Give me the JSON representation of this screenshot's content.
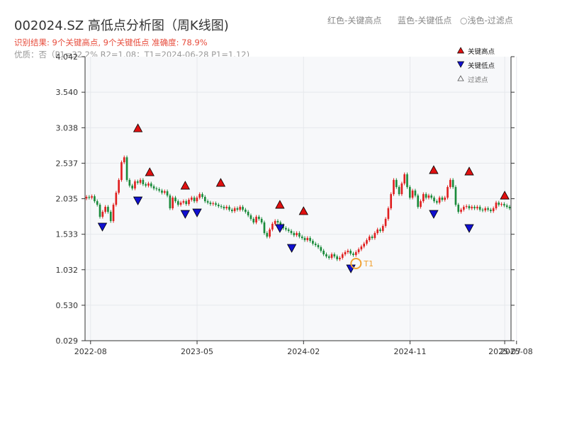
{
  "header": {
    "title": "002024.SZ 高低点分析图（周K线图)",
    "legend_red": "红色-关键高点",
    "legend_blue": "蓝色-关键低点",
    "legend_filtered": "○浅色-过滤点",
    "result_line": "识别结果: 9个关键高点, 9个关键低点  准确度: 78.9%",
    "quality_line": "优质：否（P1=32.2%  R2=1.08；T1=2024-06-28 P1=1.12)"
  },
  "colors": {
    "up": "#e02020",
    "down": "#1a8a3a",
    "high_marker": "#e01010",
    "low_marker": "#1010d0",
    "t1_ring": "#f0a030",
    "plot_bg": "#f7f8fa"
  },
  "chart_data": {
    "type": "candlestick",
    "title": "002024.SZ 高低点分析图（周K线图)",
    "xlabel": "",
    "ylabel": "",
    "ylim": [
      0.029,
      4.042
    ],
    "yticks": [
      0.029,
      0.53,
      1.032,
      1.533,
      2.035,
      2.537,
      3.038,
      3.54,
      4.042
    ],
    "xlim": [
      "2022-08",
      "2025-08"
    ],
    "xticks": [
      "2022-08",
      "2023-05",
      "2024-02",
      "2024-11",
      "2025-07",
      "2025-08"
    ],
    "grid": true,
    "legend": {
      "placement": "top-right",
      "items": [
        "关键高点",
        "关键低点",
        "过滤点"
      ]
    },
    "closes": [
      2.06,
      2.05,
      2.07,
      2.0,
      1.95,
      1.78,
      1.85,
      1.92,
      1.85,
      1.72,
      1.95,
      2.12,
      2.3,
      2.55,
      2.62,
      2.3,
      2.22,
      2.18,
      2.28,
      2.26,
      2.3,
      2.24,
      2.22,
      2.25,
      2.21,
      2.18,
      2.17,
      2.15,
      2.12,
      2.14,
      2.08,
      1.9,
      2.05,
      2.0,
      1.95,
      1.98,
      2.0,
      1.96,
      2.02,
      2.05,
      2.0,
      2.05,
      2.1,
      2.06,
      2.0,
      1.98,
      1.96,
      1.97,
      1.95,
      1.93,
      1.92,
      1.9,
      1.92,
      1.88,
      1.86,
      1.9,
      1.88,
      1.92,
      1.88,
      1.85,
      1.8,
      1.75,
      1.7,
      1.78,
      1.75,
      1.7,
      1.55,
      1.5,
      1.6,
      1.68,
      1.72,
      1.7,
      1.66,
      1.62,
      1.6,
      1.58,
      1.55,
      1.52,
      1.55,
      1.5,
      1.48,
      1.45,
      1.48,
      1.44,
      1.4,
      1.38,
      1.35,
      1.3,
      1.25,
      1.22,
      1.2,
      1.25,
      1.22,
      1.18,
      1.2,
      1.25,
      1.28,
      1.3,
      1.26,
      1.24,
      1.28,
      1.32,
      1.36,
      1.4,
      1.45,
      1.5,
      1.48,
      1.55,
      1.6,
      1.58,
      1.65,
      1.75,
      1.9,
      2.1,
      2.3,
      2.2,
      2.1,
      2.25,
      2.38,
      2.2,
      2.05,
      2.15,
      2.08,
      1.92,
      2.0,
      2.1,
      2.05,
      2.08,
      2.05,
      2.0,
      1.98,
      2.05,
      2.02,
      2.05,
      2.2,
      2.3,
      2.2,
      1.95,
      1.85,
      1.88,
      1.92,
      1.93,
      1.9,
      1.92,
      1.9,
      1.92,
      1.88,
      1.87,
      1.9,
      1.88,
      1.86,
      1.9,
      1.98,
      1.95,
      1.96,
      1.94,
      1.92,
      1.9
    ],
    "key_highs": [
      {
        "date": "2022-12",
        "value": 2.95
      },
      {
        "date": "2023-01",
        "value": 2.33
      },
      {
        "date": "2023-04",
        "value": 2.14
      },
      {
        "date": "2023-07",
        "value": 2.18
      },
      {
        "date": "2023-12",
        "value": 1.87
      },
      {
        "date": "2024-02",
        "value": 1.78
      },
      {
        "date": "2025-01",
        "value": 2.36
      },
      {
        "date": "2025-04",
        "value": 2.34
      },
      {
        "date": "2025-07",
        "value": 2.0
      }
    ],
    "key_lows": [
      {
        "date": "2022-09",
        "value": 1.72
      },
      {
        "date": "2022-12",
        "value": 2.09
      },
      {
        "date": "2023-04",
        "value": 1.9
      },
      {
        "date": "2023-05",
        "value": 1.92
      },
      {
        "date": "2023-12",
        "value": 1.7
      },
      {
        "date": "2024-01",
        "value": 1.42
      },
      {
        "date": "2024-06",
        "value": 1.13
      },
      {
        "date": "2025-01",
        "value": 1.9
      },
      {
        "date": "2025-04",
        "value": 1.7
      }
    ],
    "annotation": {
      "label": "T1",
      "date": "2024-06-28",
      "value": 1.12
    }
  }
}
